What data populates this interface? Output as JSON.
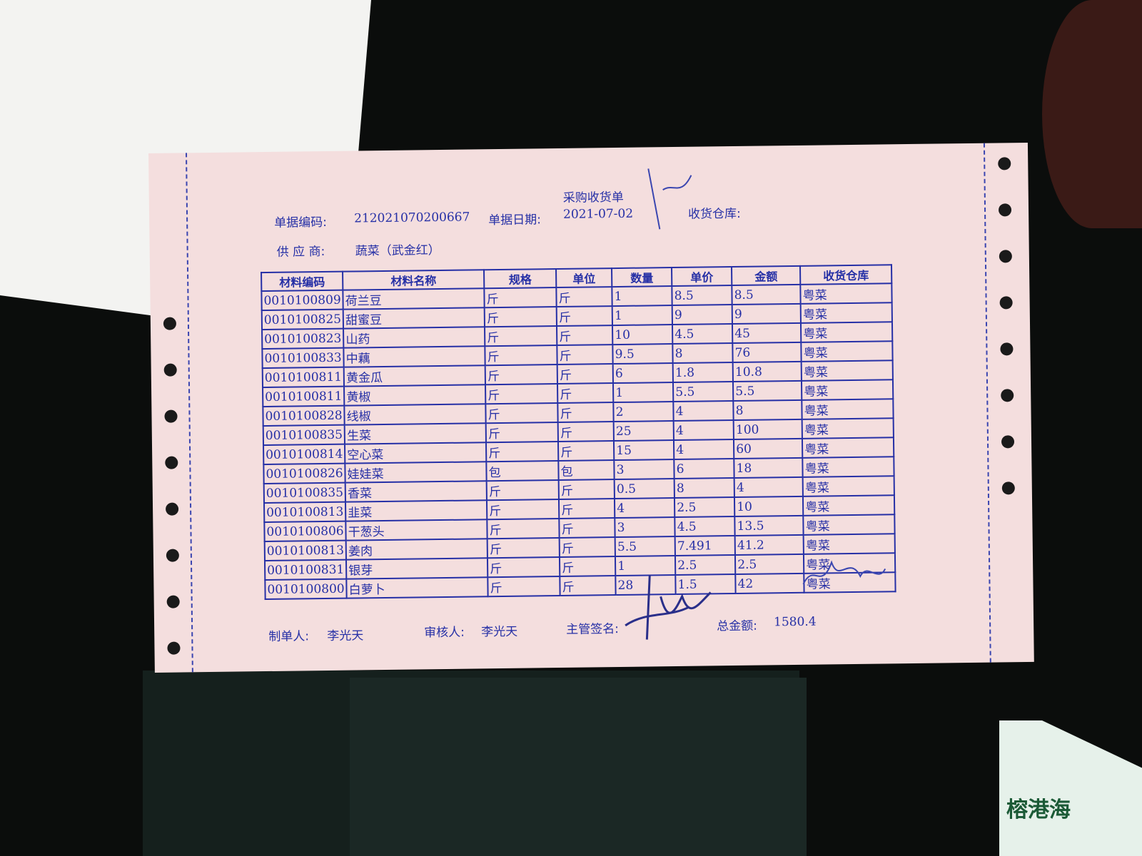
{
  "document": {
    "title": "采购收货单",
    "fields": {
      "doc_no_label": "单据编码:",
      "doc_no": "212021070200667",
      "date_label": "单据日期:",
      "date": "2021-07-02",
      "warehouse_label": "收货仓库:",
      "supplier_label": "供 应 商:",
      "supplier": "蔬菜（武金红）"
    },
    "table": {
      "headers": [
        "材料编码",
        "材料名称",
        "规格",
        "单位",
        "数量",
        "单价",
        "金额",
        "收货仓库"
      ],
      "rows": [
        [
          "0010100809",
          "荷兰豆",
          "斤",
          "斤",
          "1",
          "8.5",
          "8.5",
          "粤菜"
        ],
        [
          "0010100825",
          "甜蜜豆",
          "斤",
          "斤",
          "1",
          "9",
          "9",
          "粤菜"
        ],
        [
          "0010100823",
          "山药",
          "斤",
          "斤",
          "10",
          "4.5",
          "45",
          "粤菜"
        ],
        [
          "0010100833",
          "中藕",
          "斤",
          "斤",
          "9.5",
          "8",
          "76",
          "粤菜"
        ],
        [
          "0010100811",
          "黄金瓜",
          "斤",
          "斤",
          "6",
          "1.8",
          "10.8",
          "粤菜"
        ],
        [
          "0010100811",
          "黄椒",
          "斤",
          "斤",
          "1",
          "5.5",
          "5.5",
          "粤菜"
        ],
        [
          "0010100828",
          "线椒",
          "斤",
          "斤",
          "2",
          "4",
          "8",
          "粤菜"
        ],
        [
          "0010100835",
          "生菜",
          "斤",
          "斤",
          "25",
          "4",
          "100",
          "粤菜"
        ],
        [
          "0010100814",
          "空心菜",
          "斤",
          "斤",
          "15",
          "4",
          "60",
          "粤菜"
        ],
        [
          "0010100826",
          "娃娃菜",
          "包",
          "包",
          "3",
          "6",
          "18",
          "粤菜"
        ],
        [
          "0010100835",
          "香菜",
          "斤",
          "斤",
          "0.5",
          "8",
          "4",
          "粤菜"
        ],
        [
          "0010100813",
          "韭菜",
          "斤",
          "斤",
          "4",
          "2.5",
          "10",
          "粤菜"
        ],
        [
          "0010100806",
          "干葱头",
          "斤",
          "斤",
          "3",
          "4.5",
          "13.5",
          "粤菜"
        ],
        [
          "0010100813",
          "姜肉",
          "斤",
          "斤",
          "5.5",
          "7.491",
          "41.2",
          "粤菜"
        ],
        [
          "0010100831",
          "银芽",
          "斤",
          "斤",
          "1",
          "2.5",
          "2.5",
          "粤菜"
        ],
        [
          "0010100800",
          "白萝卜",
          "斤",
          "斤",
          "28",
          "1.5",
          "42",
          "粤菜"
        ]
      ]
    },
    "footer": {
      "maker_label": "制单人:",
      "maker": "李光天",
      "reviewer_label": "审核人:",
      "reviewer": "李光天",
      "manager_label": "主管签名:",
      "total_label": "总金额:",
      "total": "1580.4"
    }
  },
  "background": {
    "flyer_text": "榕港海"
  },
  "colors": {
    "ink": "#2630a6",
    "paper": "#f4dede"
  }
}
